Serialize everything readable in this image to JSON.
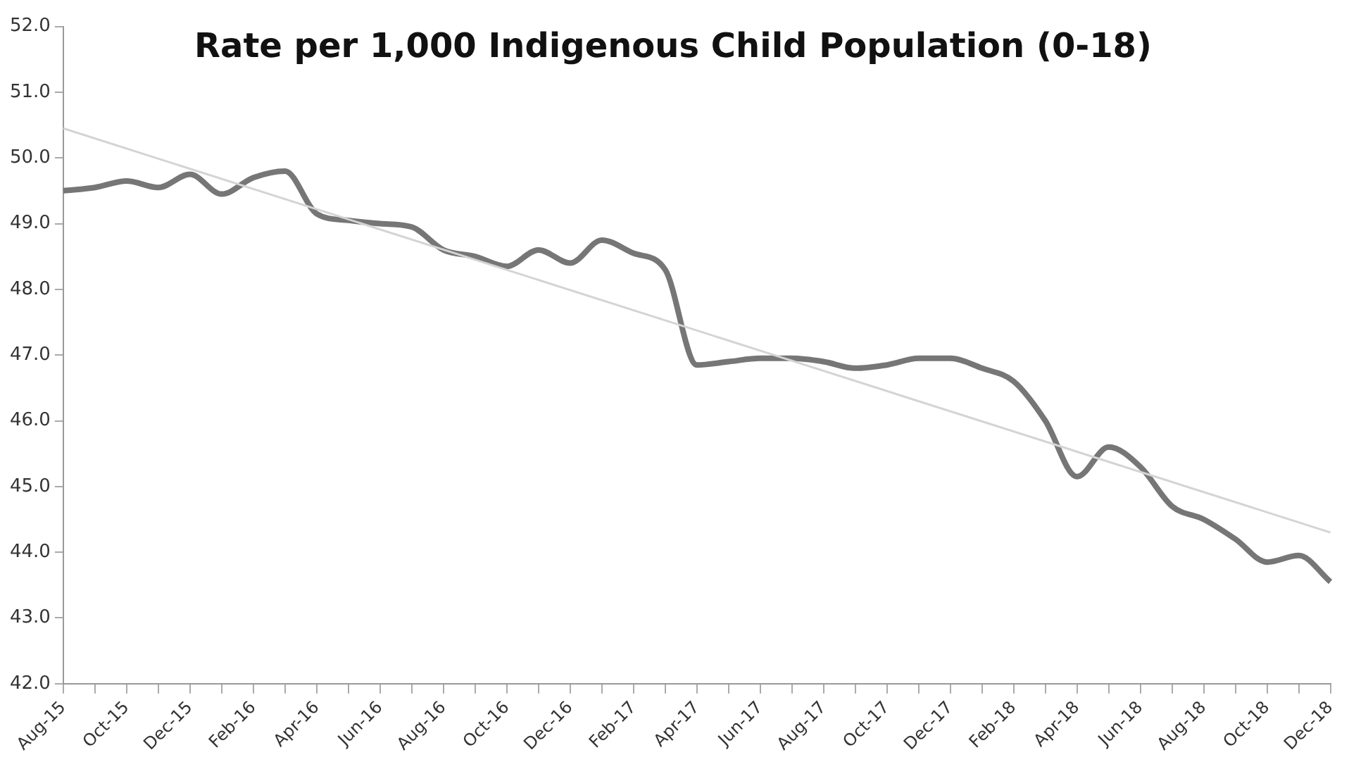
{
  "chart_data": {
    "type": "line",
    "title": "Rate per 1,000 Indigenous Child Population (0-18)",
    "categories": [
      "Aug-15",
      null,
      "Oct-15",
      null,
      "Dec-15",
      null,
      "Feb-16",
      null,
      "Apr-16",
      null,
      "Jun-16",
      null,
      "Aug-16",
      null,
      "Oct-16",
      null,
      "Dec-16",
      null,
      "Feb-17",
      null,
      "Apr-17",
      null,
      "Jun-17",
      null,
      "Aug-17",
      null,
      "Oct-17",
      null,
      "Dec-17",
      null,
      "Feb-18",
      null,
      "Apr-18",
      null,
      "Jun-18",
      null,
      "Aug-18",
      null,
      "Oct-18",
      null,
      "Dec-18"
    ],
    "series": [
      {
        "color": "#767676",
        "values": [
          49.5,
          49.55,
          49.65,
          49.55,
          49.75,
          49.45,
          49.7,
          49.8,
          49.15,
          49.05,
          49.0,
          48.95,
          48.6,
          48.5,
          48.35,
          48.6,
          48.4,
          48.75,
          48.55,
          48.3,
          46.85,
          46.9,
          46.95,
          46.95,
          46.9,
          46.8,
          46.85,
          46.95,
          46.95,
          46.8,
          46.6,
          46.0,
          45.15,
          45.6,
          45.3,
          44.7,
          44.5,
          44.2,
          43.85,
          43.95,
          43.55
        ]
      },
      {
        "type": "line",
        "color": "#d4d4d4",
        "values": [
          50.45,
          null,
          null,
          null,
          null,
          null,
          null,
          null,
          null,
          null,
          null,
          null,
          null,
          null,
          null,
          null,
          null,
          null,
          null,
          null,
          null,
          null,
          null,
          null,
          null,
          null,
          null,
          null,
          null,
          null,
          null,
          null,
          null,
          null,
          null,
          null,
          null,
          null,
          null,
          null,
          44.3
        ]
      }
    ],
    "ylim": [
      42,
      52
    ],
    "yticks": [
      {
        "value": 42,
        "label": "42.0"
      },
      {
        "value": 43,
        "label": "43.0"
      },
      {
        "value": 44,
        "label": "44.0"
      },
      {
        "value": 45,
        "label": "45.0"
      },
      {
        "value": 46,
        "label": "46.0"
      },
      {
        "value": 47,
        "label": "47.0"
      },
      {
        "value": 48,
        "label": "48.0"
      },
      {
        "value": 49,
        "label": "49.0"
      },
      {
        "value": 50,
        "label": "50.0"
      },
      {
        "value": 51,
        "label": "51.0"
      },
      {
        "value": 52,
        "label": "52.0"
      }
    ],
    "grid": false,
    "legend": false,
    "marker": "none",
    "line_style": "solid"
  }
}
